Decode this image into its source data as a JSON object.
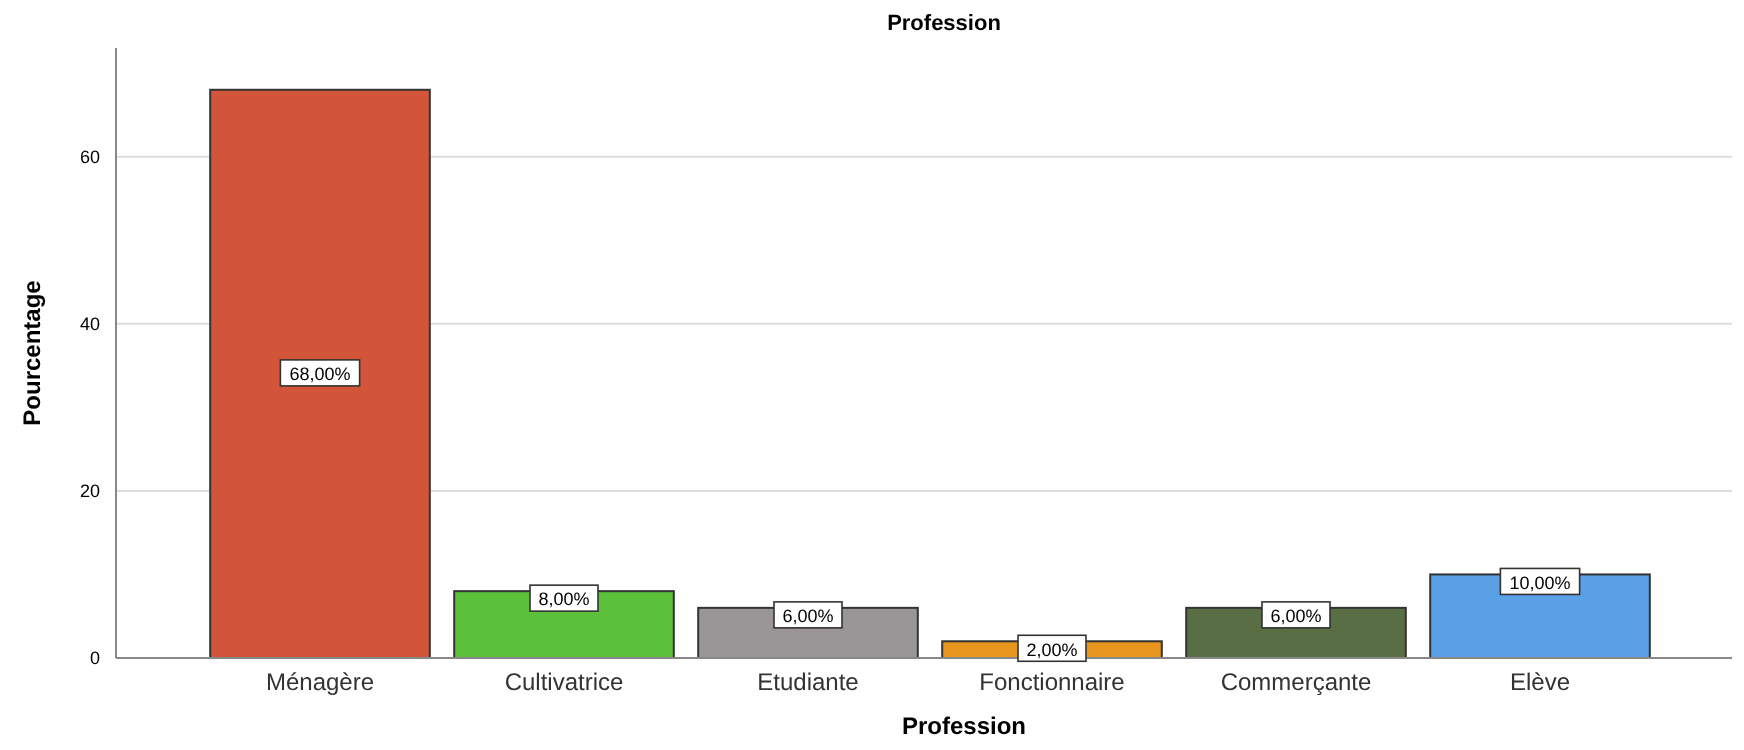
{
  "chart_data": {
    "type": "bar",
    "title": "Profession",
    "xlabel": "Profession",
    "ylabel": "Pourcentage",
    "categories": [
      "Ménagère",
      "Cultivatrice",
      "Etudiante",
      "Fonctionnaire",
      "Commerçante",
      "Elève"
    ],
    "values": [
      68,
      8,
      6,
      2,
      6,
      10
    ],
    "colors": [
      "#d2553a",
      "#5cc13a",
      "#9a9698",
      "#e8961e",
      "#5a6e45",
      "#5aa0e6"
    ],
    "value_labels": [
      "68,00%",
      "8,00%",
      "6,00%",
      "2,00%",
      "6,00%",
      "10,00%"
    ],
    "ylim": [
      0,
      73
    ],
    "yticks": [
      0,
      20,
      40,
      60
    ],
    "grid": "y"
  }
}
